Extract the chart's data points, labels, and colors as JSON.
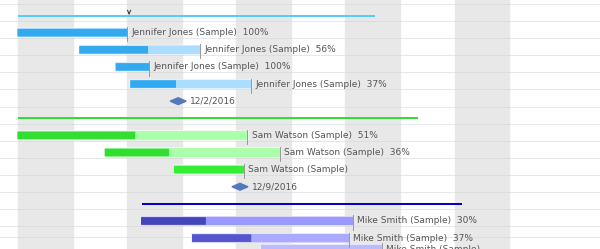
{
  "background_color": "#ffffff",
  "stripe_color": "#e8e8e8",
  "grid_line_color": "#d5d5d5",
  "text_color": "#555555",
  "milestone_color": "#5577BB",
  "connector_color": "#999999",
  "bar_height": 0.55,
  "label_fontsize": 6.5,
  "xlim": [
    -0.5,
    16.0
  ],
  "ylim": [
    -1.8,
    14.2
  ],
  "stripe_bands": [
    [
      0.0,
      1.5
    ],
    [
      3.0,
      4.5
    ],
    [
      6.0,
      7.5
    ],
    [
      9.0,
      10.5
    ],
    [
      12.0,
      13.5
    ]
  ],
  "tasks": [
    {
      "row": 13.2,
      "start": 0.0,
      "total": 9.8,
      "done": 9.8,
      "bg_color": "#55CCFF",
      "done_color": "#55CCFF",
      "is_parent": true,
      "label": null,
      "pct": null
    },
    {
      "row": 12.1,
      "start": 0.0,
      "total": 3.0,
      "done": 3.0,
      "bg_color": "#AADDFF",
      "done_color": "#33AAEE",
      "is_parent": false,
      "label": "Jennifer Jones (Sample)",
      "pct": "100%"
    },
    {
      "row": 11.0,
      "start": 1.7,
      "total": 3.3,
      "done": 1.85,
      "bg_color": "#AADDFF",
      "done_color": "#33AAEE",
      "is_parent": false,
      "label": "Jennifer Jones (Sample)",
      "pct": "56%"
    },
    {
      "row": 9.9,
      "start": 2.7,
      "total": 0.9,
      "done": 0.9,
      "bg_color": "#AADDFF",
      "done_color": "#33AAEE",
      "is_parent": false,
      "label": "Jennifer Jones (Sample)",
      "pct": "100%"
    },
    {
      "row": 8.8,
      "start": 3.1,
      "total": 3.3,
      "done": 1.22,
      "bg_color": "#AADDFF",
      "done_color": "#33AAEE",
      "is_parent": false,
      "label": "Jennifer Jones (Sample)",
      "pct": "37%"
    },
    {
      "row": 7.7,
      "start": 4.4,
      "total": 0,
      "done": 0,
      "is_milestone": true,
      "label": "12/2/2016",
      "pct": null
    },
    {
      "row": 6.6,
      "start": 0.0,
      "total": 11.0,
      "done": 5.6,
      "bg_color": "#33DD33",
      "done_color": "#33DD33",
      "is_parent": true,
      "label": null,
      "pct": null
    },
    {
      "row": 5.5,
      "start": 0.0,
      "total": 6.3,
      "done": 3.2,
      "bg_color": "#AAFFAA",
      "done_color": "#33DD33",
      "is_parent": false,
      "label": "Sam Watson (Sample)",
      "pct": "51%"
    },
    {
      "row": 4.4,
      "start": 2.4,
      "total": 4.8,
      "done": 1.73,
      "bg_color": "#AAFFAA",
      "done_color": "#33DD33",
      "is_parent": false,
      "label": "Sam Watson (Sample)",
      "pct": "36%"
    },
    {
      "row": 3.3,
      "start": 4.3,
      "total": 1.9,
      "done": 1.9,
      "bg_color": "#AAFFAA",
      "done_color": "#33EE33",
      "is_parent": false,
      "label": "Sam Watson (Sample)",
      "pct": null
    },
    {
      "row": 2.2,
      "start": 6.1,
      "total": 0,
      "done": 0,
      "is_milestone": true,
      "label": "12/9/2016",
      "pct": null
    },
    {
      "row": 1.1,
      "start": 3.4,
      "total": 8.8,
      "done": 0.44,
      "bg_color": "#0000CC",
      "done_color": "#0000CC",
      "is_parent": true,
      "label": null,
      "pct": null
    },
    {
      "row": 0.0,
      "start": 3.4,
      "total": 5.8,
      "done": 1.74,
      "bg_color": "#9999FF",
      "done_color": "#4444BB",
      "is_parent": false,
      "label": "Mike Smith (Sample)",
      "pct": "30%"
    },
    {
      "row": -1.1,
      "start": 4.8,
      "total": 4.3,
      "done": 1.59,
      "bg_color": "#AAAAFF",
      "done_color": "#5555CC",
      "is_parent": false,
      "label": "Mike Smith (Sample)",
      "pct": "37%"
    },
    {
      "row": -1.8,
      "start": 6.7,
      "total": 3.3,
      "done": 0.0,
      "bg_color": "#BBBBFF",
      "done_color": "#7777DD",
      "is_parent": false,
      "label": "Mike Smith (Sample)",
      "pct": null
    }
  ]
}
